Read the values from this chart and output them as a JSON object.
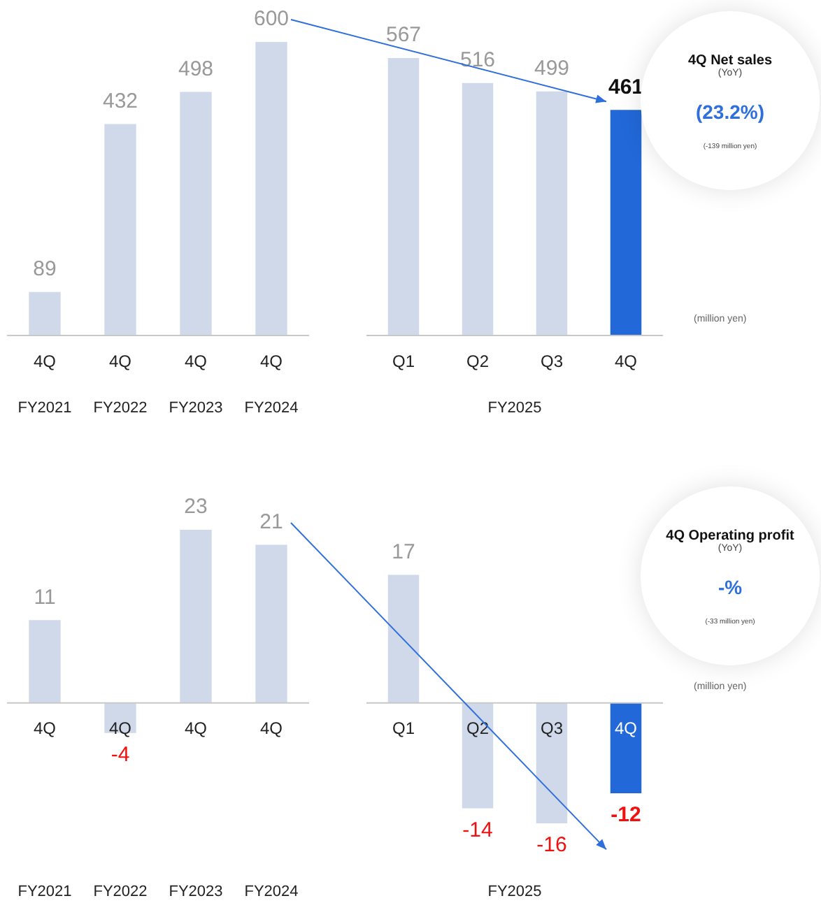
{
  "chart_data": [
    {
      "type": "bar",
      "categories": [
        "4Q",
        "4Q",
        "4Q",
        "4Q"
      ],
      "values": [
        89,
        432,
        498,
        600
      ],
      "colors": [
        "#cfd9ea",
        "#cfd9ea",
        "#cfd9ea",
        "#cfd9ea"
      ],
      "data_labels": true,
      "tick_labels": "x",
      "annotations": [
        "FY2021",
        "FY2022",
        "FY2023",
        "FY2024"
      ]
    },
    {
      "type": "bar",
      "categories": [
        "Q1",
        "Q2",
        "Q3",
        "4Q"
      ],
      "values": [
        567,
        516,
        499,
        461
      ],
      "colors": [
        "#cfd9ea",
        "#cfd9ea",
        "#cfd9ea",
        "#2268d8"
      ],
      "data_labels": true,
      "tick_labels": "x",
      "xlabel": "FY2025",
      "annotations": [
        "(million yen)"
      ]
    },
    {
      "type": "other",
      "title": "4Q Net sales",
      "subtitle": "(YoY)",
      "annotations": [
        "(23.2%)",
        "(-139 million yen)"
      ]
    },
    {
      "type": "bar",
      "categories": [
        "4Q",
        "4Q",
        "4Q",
        "4Q"
      ],
      "values": [
        11,
        -4,
        23,
        21
      ],
      "colors": [
        "#cfd9ea",
        "#cfd9ea",
        "#cfd9ea",
        "#cfd9ea"
      ],
      "data_labels": true,
      "tick_labels": "x",
      "annotations": [
        "FY2021",
        "FY2022",
        "FY2023",
        "FY2024"
      ]
    },
    {
      "type": "bar",
      "categories": [
        "Q1",
        "Q2",
        "Q3",
        "4Q"
      ],
      "values": [
        17,
        -14,
        -16,
        -12
      ],
      "colors": [
        "#cfd9ea",
        "#cfd9ea",
        "#cfd9ea",
        "#2268d8"
      ],
      "data_labels": true,
      "tick_labels": "x",
      "xlabel": "FY2025",
      "annotations": [
        "(million yen)"
      ]
    },
    {
      "type": "other",
      "title": "4Q Operating profit",
      "subtitle": "(YoY)",
      "annotations": [
        "-%",
        "(-33 million yen)"
      ]
    }
  ]
}
